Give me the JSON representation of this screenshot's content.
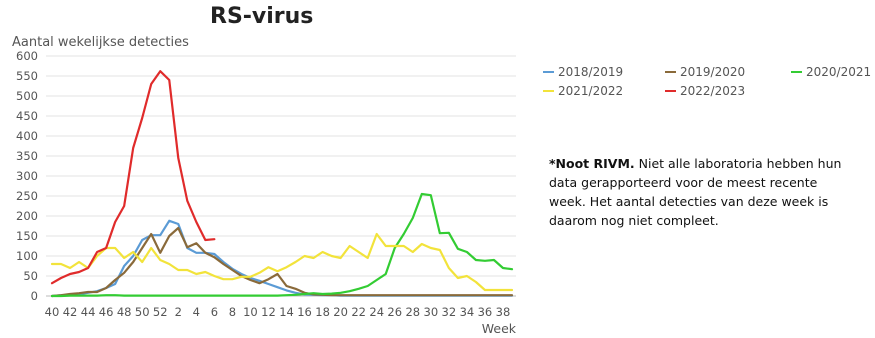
{
  "chart_data": {
    "type": "line",
    "title": "RS-virus",
    "ylabel": "Aantal wekelijkse detecties",
    "xlabel": "Week",
    "ylim": [
      0,
      600
    ],
    "yticks": [
      0,
      50,
      100,
      150,
      200,
      250,
      300,
      350,
      400,
      450,
      500,
      550,
      600
    ],
    "x_weeks": [
      40,
      41,
      42,
      43,
      44,
      45,
      46,
      47,
      48,
      49,
      50,
      51,
      52,
      1,
      2,
      3,
      4,
      5,
      6,
      7,
      8,
      9,
      10,
      11,
      12,
      13,
      14,
      15,
      16,
      17,
      18,
      19,
      20,
      21,
      22,
      23,
      24,
      25,
      26,
      27,
      28,
      29,
      30,
      31,
      32,
      33,
      34,
      35,
      36,
      37,
      38,
      39
    ],
    "xtick_labels": [
      "40",
      "42",
      "44",
      "46",
      "48",
      "50",
      "52",
      "2",
      "4",
      "6",
      "8",
      "10",
      "12",
      "14",
      "16",
      "18",
      "20",
      "22",
      "24",
      "26",
      "28",
      "30",
      "32",
      "34",
      "36",
      "38"
    ],
    "grid": true,
    "legend_position": "right",
    "series": [
      {
        "name": "2018/2019",
        "color": "#5b9bd5",
        "values": [
          0,
          2,
          3,
          5,
          8,
          12,
          20,
          30,
          75,
          100,
          140,
          152,
          152,
          188,
          180,
          120,
          108,
          108,
          105,
          85,
          68,
          55,
          45,
          38,
          30,
          22,
          14,
          8,
          4,
          3,
          2,
          2,
          1,
          1,
          1,
          1,
          1,
          1,
          1,
          1,
          1,
          1,
          1,
          1,
          1,
          1,
          1,
          1,
          1,
          1,
          1,
          1
        ]
      },
      {
        "name": "2019/2020",
        "color": "#8a6a3a",
        "values": [
          0,
          2,
          5,
          7,
          10,
          10,
          20,
          40,
          58,
          85,
          120,
          155,
          108,
          150,
          170,
          122,
          132,
          108,
          97,
          80,
          65,
          50,
          40,
          32,
          42,
          55,
          25,
          18,
          8,
          4,
          3,
          2,
          2,
          2,
          2,
          2,
          2,
          2,
          2,
          2,
          2,
          2,
          2,
          2,
          2,
          2,
          2,
          2,
          2,
          2,
          2,
          2
        ]
      },
      {
        "name": "2020/2021",
        "color": "#33cc33",
        "values": [
          0,
          0,
          1,
          1,
          1,
          1,
          2,
          2,
          1,
          1,
          1,
          1,
          1,
          1,
          1,
          1,
          1,
          1,
          1,
          1,
          1,
          1,
          1,
          1,
          1,
          1,
          2,
          3,
          5,
          7,
          5,
          6,
          8,
          12,
          18,
          25,
          40,
          55,
          120,
          155,
          195,
          255,
          252,
          157,
          158,
          118,
          110,
          90,
          88,
          90,
          70,
          67
        ]
      },
      {
        "name": "2021/2022",
        "color": "#f2e33b",
        "values": [
          80,
          80,
          70,
          85,
          70,
          100,
          120,
          120,
          95,
          110,
          85,
          120,
          90,
          80,
          65,
          65,
          55,
          60,
          50,
          42,
          42,
          48,
          48,
          58,
          72,
          62,
          72,
          85,
          100,
          95,
          110,
          100,
          95,
          125,
          110,
          95,
          155,
          125,
          125,
          125,
          110,
          130,
          120,
          115,
          70,
          45,
          50,
          35,
          15,
          15,
          15,
          15
        ]
      },
      {
        "name": "2022/2023",
        "color": "#e02b2b",
        "values": [
          32,
          45,
          55,
          60,
          70,
          110,
          120,
          185,
          225,
          370,
          445,
          530,
          562,
          540,
          345,
          238,
          185,
          140,
          142
        ]
      }
    ]
  },
  "note": {
    "bold": "*Noot RIVM.",
    "text": " Niet alle laboratoria hebben hun data gerapporteerd voor de meest recente week. Het aantal detecties van deze week is daarom nog niet compleet."
  }
}
